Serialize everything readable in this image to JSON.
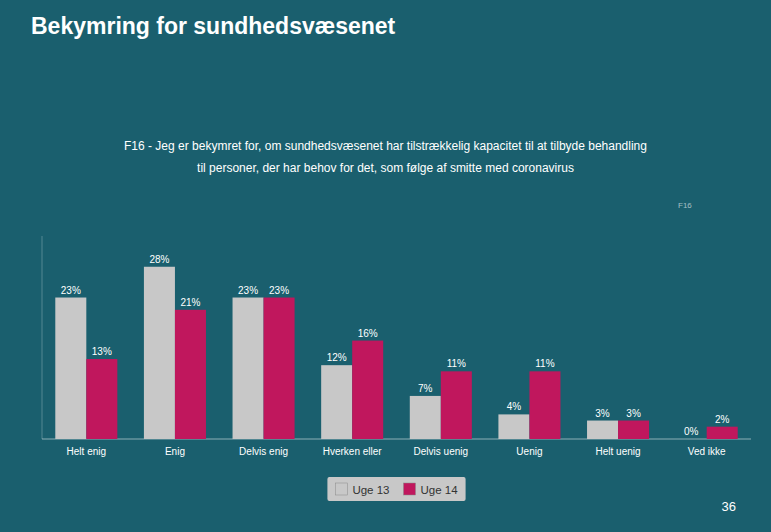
{
  "chart_data": {
    "type": "bar",
    "title": "Bekymring for sundhedsvæsenet",
    "subtitle": [
      "F16 - Jeg er bekymret for, om sundhedsvæsenet har tilstrækkelig kapacitet til at tilbyde behandling",
      "til personer, der har behov for det, som følge af smitte med coronavirus"
    ],
    "annotations": [
      "F16",
      "36"
    ],
    "categories": [
      "Helt enig",
      "Enig",
      "Delvis enig",
      "Hverken eller",
      "Delvis uenig",
      "Uenig",
      "Helt uenig",
      "Ved ikke"
    ],
    "series": [
      {
        "name": "Uge 13",
        "color": "#c8c8c8",
        "values": [
          23,
          28,
          23,
          12,
          7,
          4,
          3,
          0
        ],
        "value_labels": [
          "23%",
          "28%",
          "23%",
          "12%",
          "7%",
          "4%",
          "3%",
          "0%"
        ]
      },
      {
        "name": "Uge 14",
        "color": "#c0175d",
        "values": [
          13,
          21,
          23,
          16,
          11,
          11,
          3,
          2
        ],
        "value_labels": [
          "13%",
          "21%",
          "23%",
          "16%",
          "11%",
          "11%",
          "3%",
          "2%"
        ]
      }
    ],
    "ylim": [
      0,
      33
    ],
    "grid": false,
    "legend": "bottom",
    "data_labels": true,
    "tick_labels": "x"
  }
}
